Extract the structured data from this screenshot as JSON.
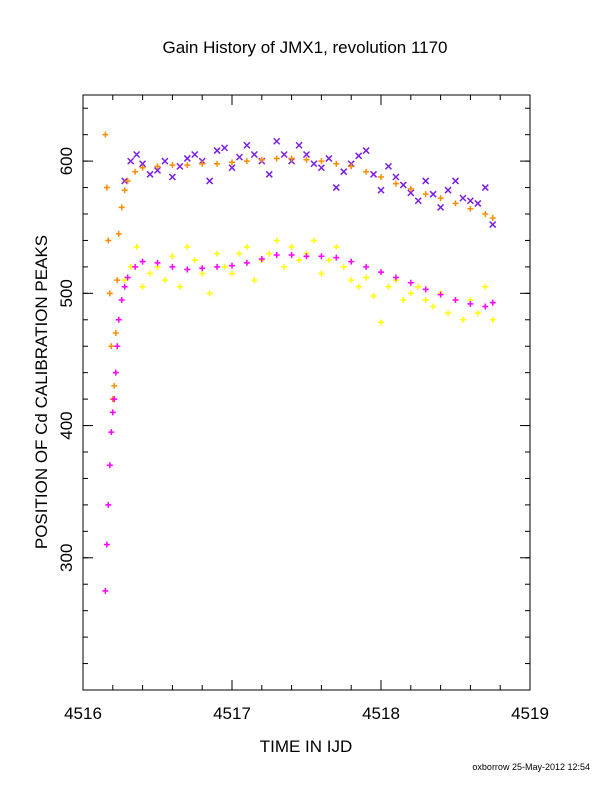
{
  "chart_data": {
    "type": "scatter",
    "title": "Gain History of JMX1, revolution 1170",
    "xlabel": "TIME IN IJD",
    "ylabel": "POSITION OF Cd CALIBRATION PEAKS",
    "xlim": [
      4516,
      4519
    ],
    "ylim": [
      200,
      650
    ],
    "x_ticks": [
      4516,
      4517,
      4518,
      4519
    ],
    "y_ticks": [
      300,
      400,
      500,
      600
    ],
    "grid": false,
    "legend": "none",
    "series": [
      {
        "marker": "x",
        "color": "#7a1fe6",
        "description": "scattered upper-peak raw points",
        "x": [
          4516.28,
          4516.32,
          4516.36,
          4516.4,
          4516.45,
          4516.5,
          4516.55,
          4516.6,
          4516.65,
          4516.7,
          4516.75,
          4516.8,
          4516.85,
          4516.9,
          4516.95,
          4517.0,
          4517.05,
          4517.1,
          4517.15,
          4517.2,
          4517.25,
          4517.3,
          4517.35,
          4517.4,
          4517.45,
          4517.5,
          4517.55,
          4517.6,
          4517.65,
          4517.7,
          4517.75,
          4517.8,
          4517.85,
          4517.9,
          4517.95,
          4518.0,
          4518.05,
          4518.1,
          4518.15,
          4518.2,
          4518.25,
          4518.3,
          4518.35,
          4518.4,
          4518.45,
          4518.5,
          4518.55,
          4518.6,
          4518.65,
          4518.7,
          4518.75
        ],
        "y": [
          585,
          600,
          605,
          598,
          590,
          593,
          600,
          588,
          596,
          602,
          605,
          600,
          585,
          608,
          610,
          595,
          603,
          612,
          605,
          600,
          590,
          615,
          605,
          600,
          612,
          605,
          598,
          595,
          602,
          580,
          592,
          598,
          604,
          608,
          590,
          578,
          596,
          588,
          582,
          576,
          570,
          585,
          575,
          565,
          578,
          585,
          572,
          570,
          568,
          580,
          552
        ]
      },
      {
        "marker": "+",
        "color": "#ff8c00",
        "description": "upper peak smoothed",
        "x": [
          4516.15,
          4516.16,
          4516.17,
          4516.18,
          4516.19,
          4516.2,
          4516.21,
          4516.22,
          4516.23,
          4516.24,
          4516.26,
          4516.28,
          4516.3,
          4516.35,
          4516.4,
          4516.5,
          4516.6,
          4516.7,
          4516.8,
          4516.9,
          4517.0,
          4517.1,
          4517.2,
          4517.3,
          4517.4,
          4517.5,
          4517.6,
          4517.7,
          4517.8,
          4517.9,
          4518.0,
          4518.1,
          4518.2,
          4518.3,
          4518.4,
          4518.5,
          4518.6,
          4518.7,
          4518.75
        ],
        "y": [
          620,
          580,
          540,
          500,
          460,
          420,
          430,
          470,
          510,
          545,
          565,
          578,
          585,
          592,
          595,
          596,
          597,
          597,
          598,
          598,
          599,
          600,
          601,
          602,
          602,
          601,
          600,
          598,
          596,
          592,
          588,
          583,
          579,
          575,
          572,
          568,
          564,
          560,
          557
        ]
      },
      {
        "marker": "+",
        "color": "#ffff00",
        "description": "lower-peak raw points",
        "x": [
          4516.28,
          4516.32,
          4516.36,
          4516.4,
          4516.45,
          4516.5,
          4516.55,
          4516.6,
          4516.65,
          4516.7,
          4516.75,
          4516.8,
          4516.85,
          4516.9,
          4516.95,
          4517.0,
          4517.05,
          4517.1,
          4517.15,
          4517.2,
          4517.25,
          4517.3,
          4517.35,
          4517.4,
          4517.45,
          4517.5,
          4517.55,
          4517.6,
          4517.65,
          4517.7,
          4517.75,
          4517.8,
          4517.85,
          4517.9,
          4517.95,
          4518.0,
          4518.05,
          4518.1,
          4518.15,
          4518.2,
          4518.25,
          4518.3,
          4518.35,
          4518.4,
          4518.45,
          4518.5,
          4518.55,
          4518.6,
          4518.65,
          4518.7,
          4518.75
        ],
        "y": [
          510,
          520,
          535,
          505,
          515,
          520,
          510,
          528,
          505,
          535,
          525,
          515,
          500,
          530,
          520,
          515,
          530,
          535,
          510,
          525,
          530,
          540,
          520,
          535,
          525,
          530,
          540,
          515,
          525,
          535,
          520,
          510,
          505,
          512,
          498,
          478,
          505,
          510,
          495,
          500,
          505,
          495,
          490,
          500,
          485,
          495,
          480,
          495,
          485,
          505,
          480
        ]
      },
      {
        "marker": "+",
        "color": "#ff00ff",
        "description": "lower peak smoothed",
        "x": [
          4516.15,
          4516.16,
          4516.17,
          4516.18,
          4516.19,
          4516.2,
          4516.21,
          4516.22,
          4516.23,
          4516.24,
          4516.26,
          4516.28,
          4516.3,
          4516.35,
          4516.4,
          4516.5,
          4516.6,
          4516.7,
          4516.8,
          4516.9,
          4517.0,
          4517.1,
          4517.2,
          4517.3,
          4517.4,
          4517.5,
          4517.6,
          4517.7,
          4517.8,
          4517.9,
          4518.0,
          4518.1,
          4518.2,
          4518.3,
          4518.4,
          4518.5,
          4518.6,
          4518.7,
          4518.75
        ],
        "y": [
          275,
          310,
          340,
          370,
          395,
          410,
          420,
          440,
          460,
          480,
          495,
          505,
          512,
          520,
          524,
          523,
          520,
          518,
          519,
          520,
          521,
          523,
          526,
          529,
          529,
          528,
          528,
          527,
          524,
          520,
          516,
          512,
          508,
          503,
          499,
          495,
          492,
          490,
          493
        ]
      }
    ]
  },
  "footer": "oxborrow 25-May-2012 12:54"
}
